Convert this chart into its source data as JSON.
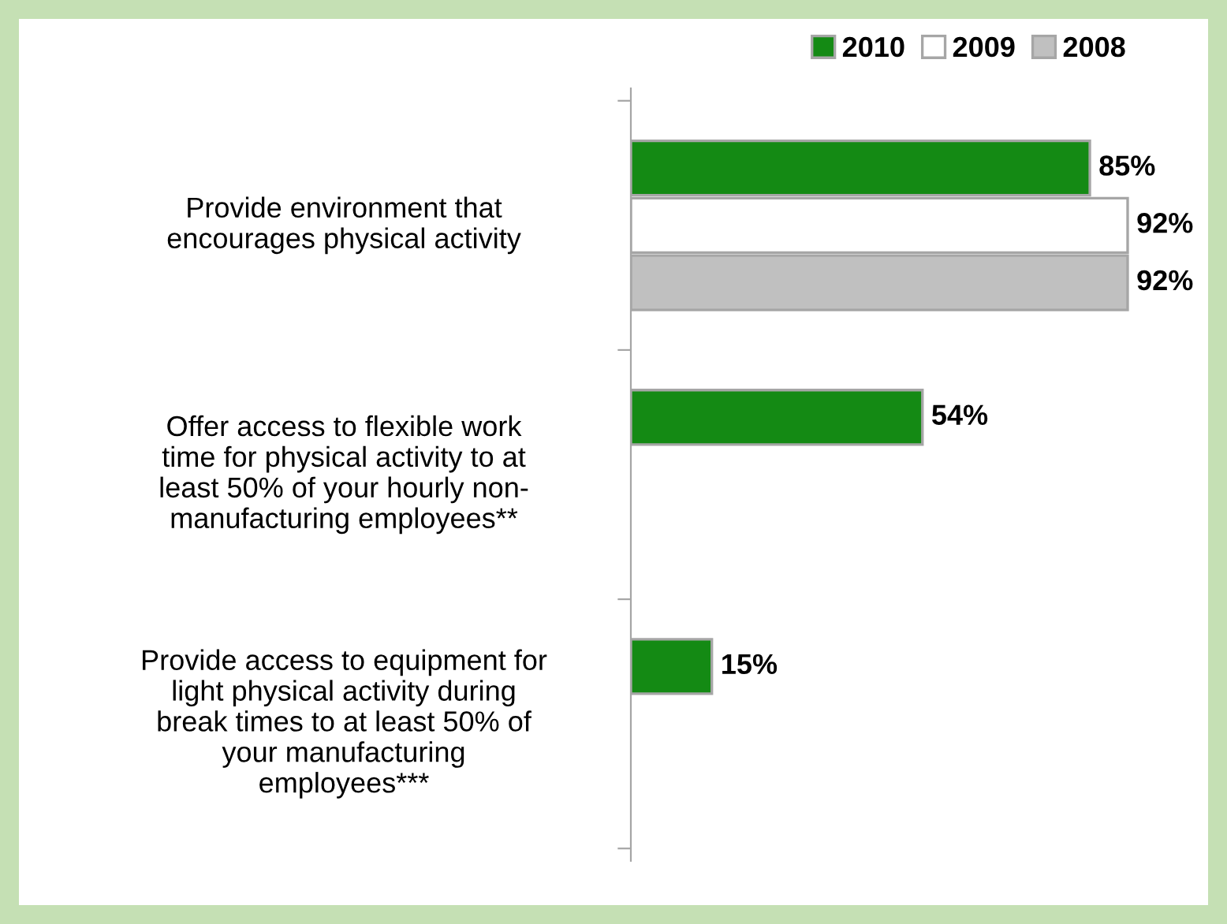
{
  "chart_data": {
    "type": "bar",
    "orientation": "horizontal",
    "categories": [
      "Provide environment that\nencourages physical activity",
      "Offer access to flexible work\ntime for physical activity to at\nleast 50% of your hourly non-\nmanufacturing employees**",
      "Provide access to equipment for\nlight physical activity during\nbreak times to at least 50% of\nyour manufacturing\nemployees***"
    ],
    "series": [
      {
        "name": "2010",
        "color": "#148a14",
        "values": [
          85,
          54,
          15
        ],
        "value_labels": [
          "85%",
          "54%",
          "15%"
        ]
      },
      {
        "name": "2009",
        "color": "#ffffff",
        "values": [
          92,
          null,
          null
        ],
        "value_labels": [
          "92%",
          null,
          null
        ]
      },
      {
        "name": "2008",
        "color": "#c0c0c0",
        "values": [
          92,
          null,
          null
        ],
        "value_labels": [
          "92%",
          null,
          null
        ]
      }
    ],
    "legend": "top right",
    "grid": false,
    "tick_labels": "y"
  }
}
